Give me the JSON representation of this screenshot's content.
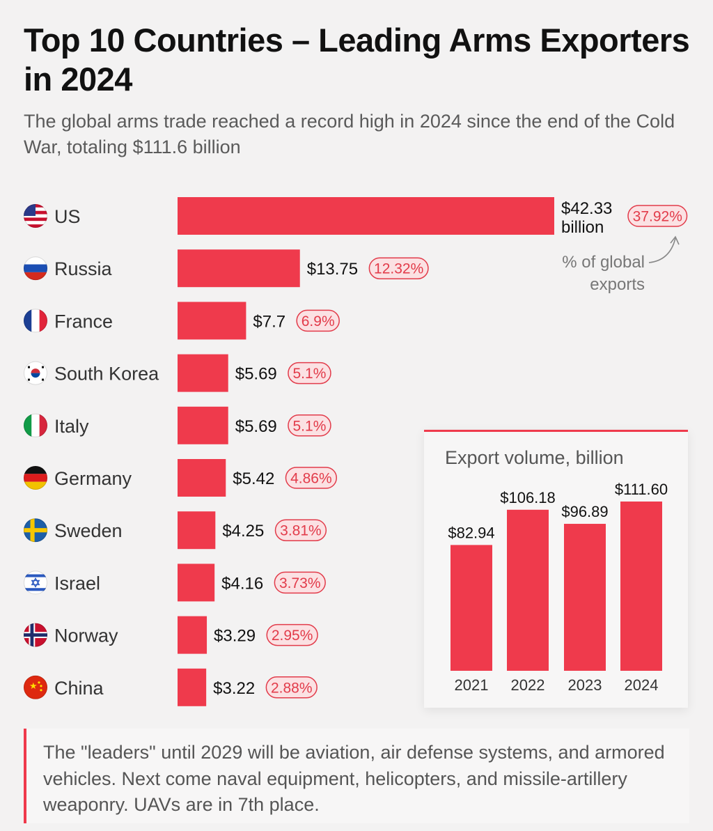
{
  "title": "Top 10 Countries – Leading Arms Exporters in 2024",
  "subtitle": "The global arms trade reached a record high in 2024 since the end of the Cold War, totaling $111.6 billion",
  "annotation": {
    "line1": "% of global",
    "line2": "exports"
  },
  "colors": {
    "bar": "#ef3a4c",
    "accent": "#e23b4a",
    "pill_bg": "#fbe1e3"
  },
  "chart_data": [
    {
      "type": "bar",
      "orientation": "horizontal",
      "title": "Top 10 Countries – Leading Arms Exporters in 2024",
      "unit": "billion USD",
      "categories": [
        "US",
        "Russia",
        "France",
        "South Korea",
        "Italy",
        "Germany",
        "Sweden",
        "Israel",
        "Norway",
        "China"
      ],
      "values": [
        42.33,
        13.75,
        7.7,
        5.69,
        5.69,
        5.42,
        4.25,
        4.16,
        3.29,
        3.22
      ],
      "value_labels": [
        "$42.33",
        "$13.75",
        "$7.7",
        "$5.69",
        "$5.69",
        "$5.42",
        "$4.25",
        "$4.16",
        "$3.29",
        "$3.22"
      ],
      "first_value_suffix": "billion",
      "shares": [
        "37.92%",
        "12.32%",
        "6.9%",
        "5.1%",
        "5.1%",
        "4.86%",
        "3.81%",
        "3.73%",
        "2.95%",
        "2.88%"
      ],
      "flags": [
        "us-flag-icon",
        "russia-flag-icon",
        "france-flag-icon",
        "south-korea-flag-icon",
        "italy-flag-icon",
        "germany-flag-icon",
        "sweden-flag-icon",
        "israel-flag-icon",
        "norway-flag-icon",
        "china-flag-icon"
      ]
    },
    {
      "type": "bar",
      "orientation": "vertical",
      "title": "Export volume, billion",
      "categories": [
        "2021",
        "2022",
        "2023",
        "2024"
      ],
      "values": [
        82.94,
        106.18,
        96.89,
        111.6
      ],
      "value_labels": [
        "$82.94",
        "$106.18",
        "$96.89",
        "$111.60"
      ],
      "ylim": [
        0,
        111.6
      ]
    }
  ],
  "footer": "The \"leaders\" until 2029 will be aviation, air defense systems, and armored vehicles. Next come naval equipment, helicopters, and missile-artillery weaponry. UAVs are in 7th place."
}
